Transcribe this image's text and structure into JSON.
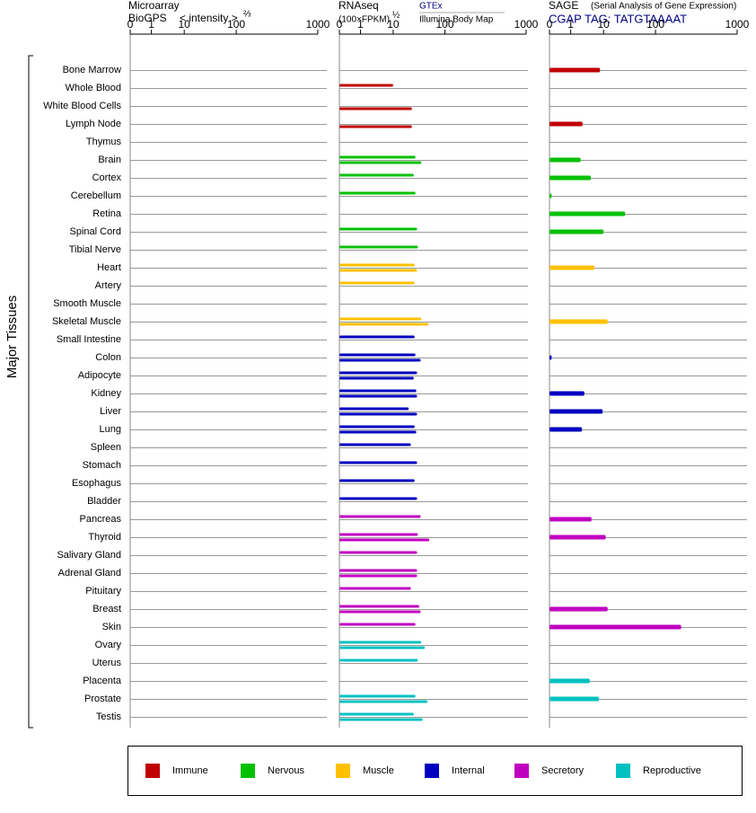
{
  "chart_data": {
    "type": "bar",
    "y_label": "Major Tissues",
    "categories": [
      "Bone Marrow",
      "Whole Blood",
      "White Blood Cells",
      "Lymph Node",
      "Thymus",
      "Brain",
      "Cortex",
      "Cerebellum",
      "Retina",
      "Spinal Cord",
      "Tibial Nerve",
      "Heart",
      "Artery",
      "Smooth Muscle",
      "Skeletal Muscle",
      "Small Intestine",
      "Colon",
      "Adipocyte",
      "Kidney",
      "Liver",
      "Lung",
      "Spleen",
      "Stomach",
      "Esophagus",
      "Bladder",
      "Pancreas",
      "Thyroid",
      "Salivary Gland",
      "Adrenal Gland",
      "Pituitary",
      "Breast",
      "Skin",
      "Ovary",
      "Uterus",
      "Placenta",
      "Prostate",
      "Testis"
    ],
    "category_colors": [
      "#c00000",
      "#c00000",
      "#c00000",
      "#c00000",
      "#c00000",
      "#00c000",
      "#00c000",
      "#00c000",
      "#00c000",
      "#00c000",
      "#00c000",
      "#ffc000",
      "#ffc000",
      "#ffc000",
      "#ffc000",
      "#0000c0",
      "#0000c0",
      "#0000c0",
      "#0000c0",
      "#0000c0",
      "#0000c0",
      "#0000c0",
      "#0000c0",
      "#0000c0",
      "#0000c0",
      "#c000c0",
      "#c000c0",
      "#c000c0",
      "#c000c0",
      "#c000c0",
      "#c000c0",
      "#c000c0",
      "#00c0c0",
      "#00c0c0",
      "#00c0c0",
      "#00c0c0",
      "#00c0c0"
    ],
    "legend": [
      {
        "name": "Immune",
        "color": "#c00000"
      },
      {
        "name": "Nervous",
        "color": "#00c000"
      },
      {
        "name": "Muscle",
        "color": "#ffc000"
      },
      {
        "name": "Internal",
        "color": "#0000c0"
      },
      {
        "name": "Secretory",
        "color": "#c000c0"
      },
      {
        "name": "Reproductive",
        "color": "#00c0c0"
      }
    ],
    "panels": [
      {
        "title": "Microarray",
        "subtitle": "BioGPS",
        "x_label": "< intensity >",
        "x_label_exponent": "⅔",
        "xlim": [
          0,
          1000
        ],
        "xticks": [
          0,
          1,
          10,
          100,
          1000
        ],
        "series": [
          {
            "values": [
              null,
              null,
              null,
              null,
              null,
              null,
              null,
              null,
              null,
              null,
              null,
              null,
              null,
              null,
              null,
              null,
              null,
              null,
              null,
              null,
              null,
              null,
              null,
              null,
              null,
              null,
              null,
              null,
              null,
              null,
              null,
              null,
              null,
              null,
              null,
              null,
              null
            ]
          }
        ]
      },
      {
        "title": "RNAseq",
        "x_label": "(100×FPKM)",
        "x_label_exponent": "½",
        "xlim": [
          0,
          1000
        ],
        "xticks": [
          0,
          1,
          10,
          100,
          1000
        ],
        "series": [
          {
            "name": "GTEx",
            "values": [
              null,
              10,
              null,
              null,
              null,
              27,
              25,
              27,
              null,
              29,
              30,
              26,
              26,
              null,
              35,
              26,
              27,
              29,
              28,
              20,
              26,
              22,
              29,
              26,
              29,
              34,
              30,
              29,
              29,
              22,
              32,
              27,
              35,
              30,
              null,
              27,
              25
            ]
          },
          {
            "name": "Illumina Body Map",
            "values": [
              null,
              null,
              23,
              23,
              null,
              35,
              null,
              null,
              null,
              null,
              null,
              29,
              null,
              null,
              48,
              null,
              34,
              25,
              29,
              29,
              28,
              null,
              null,
              null,
              null,
              null,
              50,
              null,
              29,
              null,
              34,
              null,
              41,
              null,
              null,
              46,
              37
            ]
          }
        ]
      },
      {
        "title": "SAGE",
        "subtitle": "(Serial Analysis of Gene Expression)",
        "tag": "CGAP TAG: TATGTAAAAT",
        "xlim": [
          0,
          1000
        ],
        "xticks": [
          0,
          1,
          10,
          100,
          1000
        ],
        "series": [
          {
            "values": [
              7.8,
              null,
              null,
              2.3,
              null,
              2.0,
              4.1,
              0.1,
              26,
              10,
              null,
              5.3,
              null,
              null,
              12,
              null,
              0.1,
              null,
              2.6,
              9.4,
              2.2,
              null,
              null,
              null,
              null,
              4.3,
              11,
              null,
              null,
              null,
              12,
              206,
              null,
              null,
              3.8,
              7.2,
              null
            ]
          }
        ]
      }
    ]
  }
}
